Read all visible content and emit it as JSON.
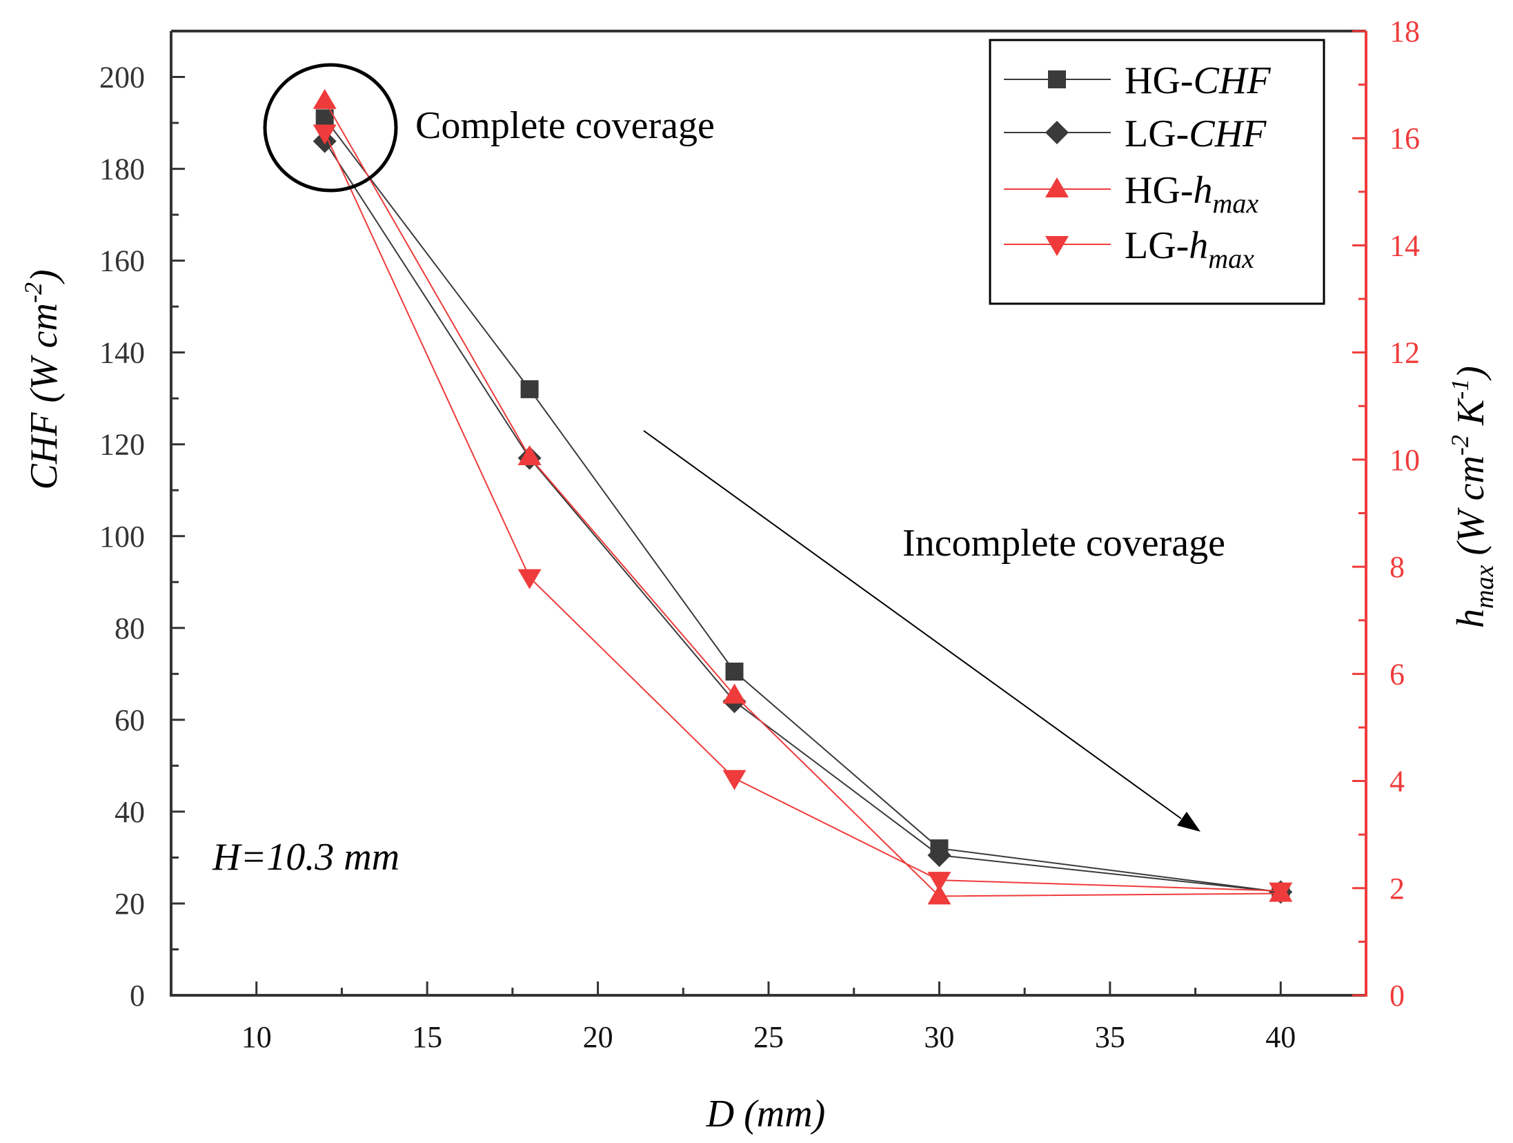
{
  "chart_data": {
    "type": "line",
    "title": "",
    "xlabel": "D (mm)",
    "ylabel_left": {
      "italic": "CHF",
      "rest": " (W cm",
      "sup": "-2",
      "end": ")"
    },
    "ylabel_right": {
      "italic": "h",
      "sub": "max",
      "rest": " (W cm",
      "sup1": "-2",
      "mid": " K",
      "sup2": "-1",
      "end": ")"
    },
    "xlim": [
      7.5,
      42.5
    ],
    "ylim_left": [
      0,
      210
    ],
    "ylim_right": [
      0,
      18
    ],
    "x_ticks": [
      "10",
      "15",
      "20",
      "25",
      "30",
      "35",
      "40"
    ],
    "y_left_ticks": [
      "0",
      "20",
      "40",
      "60",
      "80",
      "100",
      "120",
      "140",
      "160",
      "180",
      "200"
    ],
    "y_right_ticks": [
      "0",
      "2",
      "4",
      "6",
      "8",
      "10",
      "12",
      "14",
      "16",
      "18"
    ],
    "series": [
      {
        "name": "HG-CHF",
        "label_plain": "HG-",
        "label_italic": "CHF",
        "label_sub": "",
        "axis": "left",
        "marker": "square",
        "color": "#3a3a3a",
        "x": [
          12,
          18,
          24,
          30,
          40
        ],
        "y": [
          191,
          132,
          70.5,
          32,
          22.5
        ]
      },
      {
        "name": "LG-CHF",
        "label_plain": "LG-",
        "label_italic": "CHF",
        "label_sub": "",
        "axis": "left",
        "marker": "diamond",
        "color": "#3a3a3a",
        "x": [
          12,
          18,
          24,
          30,
          40
        ],
        "y": [
          186,
          117,
          64,
          30.5,
          22.5
        ]
      },
      {
        "name": "HG-hmax",
        "label_plain": "HG-",
        "label_italic": "h",
        "label_sub": "max",
        "axis": "right",
        "marker": "triangle-up",
        "color": "#ef3b3b",
        "x": [
          12,
          18,
          24,
          30,
          40
        ],
        "y": [
          16.7,
          10.05,
          5.6,
          1.85,
          1.9
        ]
      },
      {
        "name": "LG-hmax",
        "label_plain": "LG-",
        "label_italic": "h",
        "label_sub": "max",
        "axis": "right",
        "marker": "triangle-down",
        "color": "#ef3b3b",
        "x": [
          12,
          18,
          24,
          30,
          40
        ],
        "y": [
          16.1,
          7.8,
          4.05,
          2.15,
          1.95
        ]
      }
    ],
    "annotations": {
      "complete": "Complete coverage",
      "incomplete": "Incomplete coverage",
      "height": "H=10.3 mm"
    },
    "legend_position": "top-right"
  }
}
